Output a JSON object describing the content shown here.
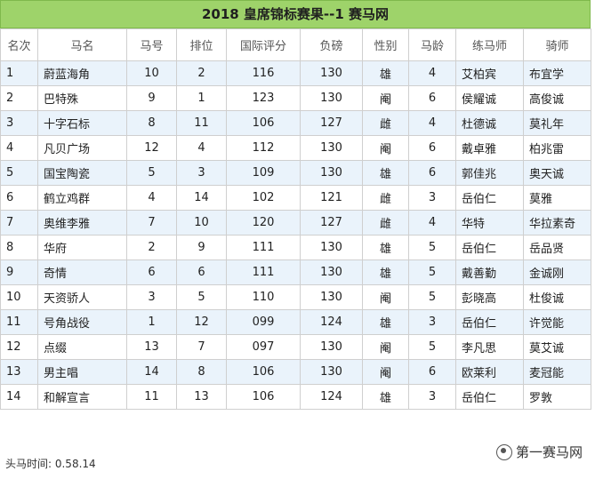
{
  "title": "2018 皇席锦标赛果--1 赛马网",
  "columns": [
    "名次",
    "马名",
    "马号",
    "排位",
    "国际评分",
    "负磅",
    "性别",
    "马龄",
    "练马师",
    "骑师"
  ],
  "rows": [
    [
      "1",
      "蔚蓝海角",
      "10",
      "2",
      "116",
      "130",
      "雄",
      "4",
      "艾柏宾",
      "布宜学"
    ],
    [
      "2",
      "巴特殊",
      "9",
      "1",
      "123",
      "130",
      "阉",
      "6",
      "侯耀诚",
      "高俊诚"
    ],
    [
      "3",
      "十字石标",
      "8",
      "11",
      "106",
      "127",
      "雌",
      "4",
      "杜德诚",
      "莫礼年"
    ],
    [
      "4",
      "凡贝广场",
      "12",
      "4",
      "112",
      "130",
      "阉",
      "6",
      "戴卓雅",
      "柏兆雷"
    ],
    [
      "5",
      "国宝陶瓷",
      "5",
      "3",
      "109",
      "130",
      "雄",
      "6",
      "郭佳兆",
      "奥天诚"
    ],
    [
      "6",
      "鹤立鸡群",
      "4",
      "14",
      "102",
      "121",
      "雌",
      "3",
      "岳伯仁",
      "莫雅"
    ],
    [
      "7",
      "奥维李雅",
      "7",
      "10",
      "120",
      "127",
      "雌",
      "4",
      "华特",
      "华拉素奇"
    ],
    [
      "8",
      "华府",
      "2",
      "9",
      "111",
      "130",
      "雄",
      "5",
      "岳伯仁",
      "岳品贤"
    ],
    [
      "9",
      "奇情",
      "6",
      "6",
      "111",
      "130",
      "雄",
      "5",
      "戴善勤",
      "金诚刚"
    ],
    [
      "10",
      "天资骄人",
      "3",
      "5",
      "110",
      "130",
      "阉",
      "5",
      "彭晓高",
      "杜俊诚"
    ],
    [
      "11",
      "号角战役",
      "1",
      "12",
      "099",
      "124",
      "雄",
      "3",
      "岳伯仁",
      "许觉能"
    ],
    [
      "12",
      "点缀",
      "13",
      "7",
      "097",
      "130",
      "阉",
      "5",
      "李凡思",
      "莫艾诚"
    ],
    [
      "13",
      "男主唱",
      "14",
      "8",
      "106",
      "130",
      "阉",
      "6",
      "欧莱利",
      "麦冠能"
    ],
    [
      "14",
      "和解宣言",
      "11",
      "13",
      "106",
      "124",
      "雄",
      "3",
      "岳伯仁",
      "罗敦"
    ]
  ],
  "footer": "头马时间: 0.58.14",
  "watermark": "第一赛马网",
  "colors": {
    "title_bg": "#9ed36a",
    "row_alt": "#eaf3fb",
    "grid": "#cfcfcf"
  },
  "icons": {
    "watermark": "wechat-logo-icon"
  }
}
